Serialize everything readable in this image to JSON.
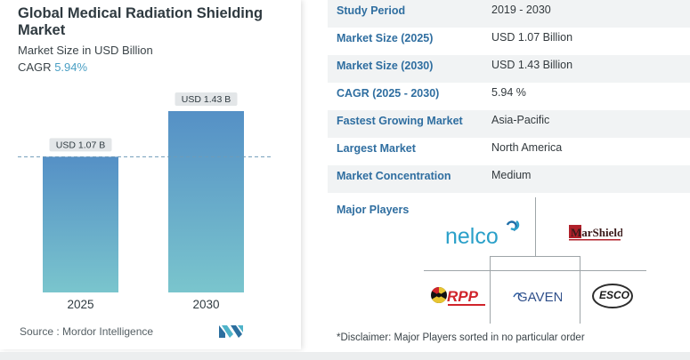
{
  "title": "Global Medical Radiation Shielding Market",
  "subtitle": "Market Size in USD Billion",
  "cagr_label": "CAGR",
  "cagr_value": "5.94%",
  "source": "Source :  Mordor Intelligence",
  "chart_data": {
    "type": "bar",
    "categories": [
      "2025",
      "2030"
    ],
    "values": [
      1.07,
      1.43
    ],
    "data_labels": [
      "USD 1.07 B",
      "USD 1.43 B"
    ],
    "ylim": [
      0,
      1.5
    ],
    "reference_line": 1.07,
    "grid": false,
    "colors": {
      "bar_top": "#5590c6",
      "bar_bottom": "#7ac5cd",
      "label_bg": "#e3e6e8",
      "reference_line": "#6f9bb8"
    }
  },
  "stats": [
    {
      "label": "Study Period",
      "value": "2019 - 2030"
    },
    {
      "label": "Market Size (2025)",
      "value": "USD 1.07 Billion"
    },
    {
      "label": "Market Size (2030)",
      "value": "USD 1.43 Billion"
    },
    {
      "label": "CAGR (2025 - 2030)",
      "value": "5.94 %"
    },
    {
      "label": "Fastest Growing Market",
      "value": "Asia-Pacific"
    },
    {
      "label": "Largest Market",
      "value": "North America"
    },
    {
      "label": "Market Concentration",
      "value": "Medium"
    }
  ],
  "major_players_label": "Major Players",
  "players": [
    {
      "name": "nelco",
      "logo": "nelco-logo"
    },
    {
      "name": "MarShield",
      "logo": "marshield-logo"
    },
    {
      "name": "RPP",
      "logo": "rpp-logo"
    },
    {
      "name": "GAVEN",
      "logo": "gaven-logo"
    },
    {
      "name": "ESCO",
      "logo": "esco-logo"
    }
  ],
  "disclaimer": "*Disclaimer: Major Players sorted in no particular order"
}
